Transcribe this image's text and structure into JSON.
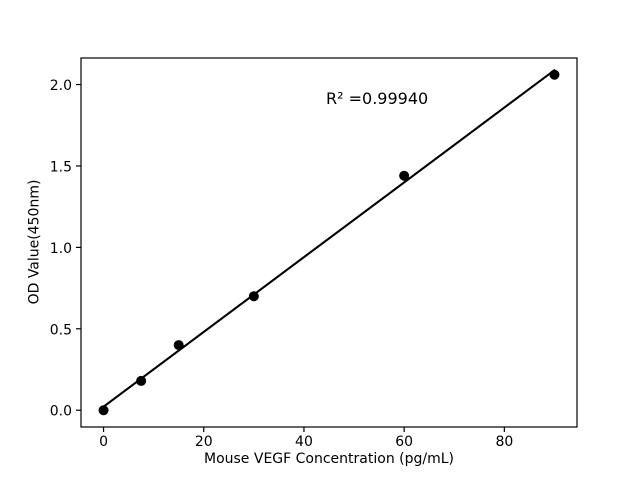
{
  "figure": {
    "background_color": "#ffffff",
    "axes_color": "#000000"
  },
  "chart_data": {
    "type": "scatter",
    "title": "",
    "xlabel": "Mouse VEGF Concentration (pg/mL)",
    "ylabel": "OD Value(450nm)",
    "annotation": "R² =0.99940",
    "r_squared_label": "0.99940",
    "x": [
      0,
      7.5,
      15,
      30,
      60,
      90
    ],
    "y": [
      0.0,
      0.18,
      0.4,
      0.7,
      1.44,
      2.06
    ],
    "series_name": "standard-curve",
    "fit_line": "linear",
    "xlim": [
      -4.5,
      94.5
    ],
    "ylim": [
      -0.103,
      2.163
    ],
    "xticks": {
      "values": [
        0,
        20,
        40,
        60,
        80
      ],
      "labels": [
        "0",
        "20",
        "40",
        "60",
        "80"
      ]
    },
    "yticks": {
      "values": [
        0,
        0.5,
        1.0,
        1.5,
        2.0
      ],
      "labels": [
        "0.0",
        "0.5",
        "1.0",
        "1.5",
        "2.0"
      ]
    },
    "grid": false,
    "legend": null,
    "marker_color": "#000000",
    "line_color": "#000000",
    "tick_font_px": 14,
    "label_font_px": 14,
    "annotation_font_px": 16
  }
}
